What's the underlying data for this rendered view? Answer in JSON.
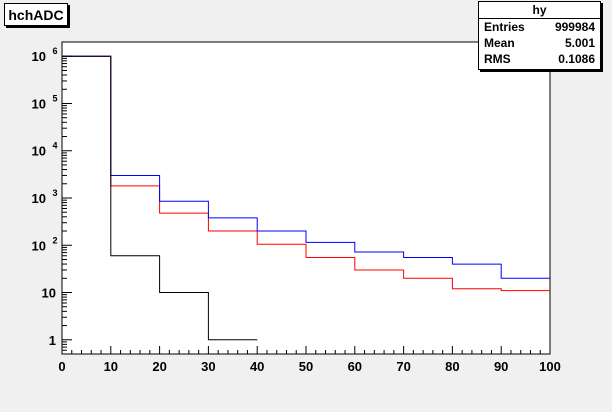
{
  "title": "hchADC",
  "stats": {
    "name": "hy",
    "rows": [
      {
        "label": "Entries",
        "value": "999984"
      },
      {
        "label": "Mean",
        "value": "5.001"
      },
      {
        "label": "RMS",
        "value": "0.1086"
      }
    ]
  },
  "chart_data": {
    "type": "line",
    "step": true,
    "log_y": true,
    "xlim": [
      0,
      100
    ],
    "ylim": [
      0.5,
      2000000
    ],
    "x_ticks": [
      "0",
      "10",
      "20",
      "30",
      "40",
      "50",
      "60",
      "70",
      "80",
      "90",
      "100"
    ],
    "y_ticks": [
      {
        "value": 1,
        "base": "1",
        "exp": ""
      },
      {
        "value": 10,
        "base": "10",
        "exp": ""
      },
      {
        "value": 100,
        "base": "10",
        "exp": "2"
      },
      {
        "value": 1000,
        "base": "10",
        "exp": "3"
      },
      {
        "value": 10000,
        "base": "10",
        "exp": "4"
      },
      {
        "value": 100000,
        "base": "10",
        "exp": "5"
      },
      {
        "value": 1000000,
        "base": "10",
        "exp": "6"
      }
    ],
    "bin_edges": [
      0,
      10,
      20,
      30,
      40,
      50,
      60,
      70,
      80,
      90,
      100
    ],
    "series": [
      {
        "color": "#ff0000",
        "values": [
          1000000,
          1800,
          480,
          200,
          105,
          55,
          30,
          20,
          12,
          11
        ]
      },
      {
        "color": "#0000ff",
        "values": [
          1000000,
          3000,
          850,
          380,
          200,
          115,
          72,
          55,
          40,
          20
        ]
      },
      {
        "color": "#000000",
        "values": [
          1000000,
          60,
          10,
          1,
          null,
          null,
          null,
          null,
          null,
          null
        ]
      }
    ]
  }
}
